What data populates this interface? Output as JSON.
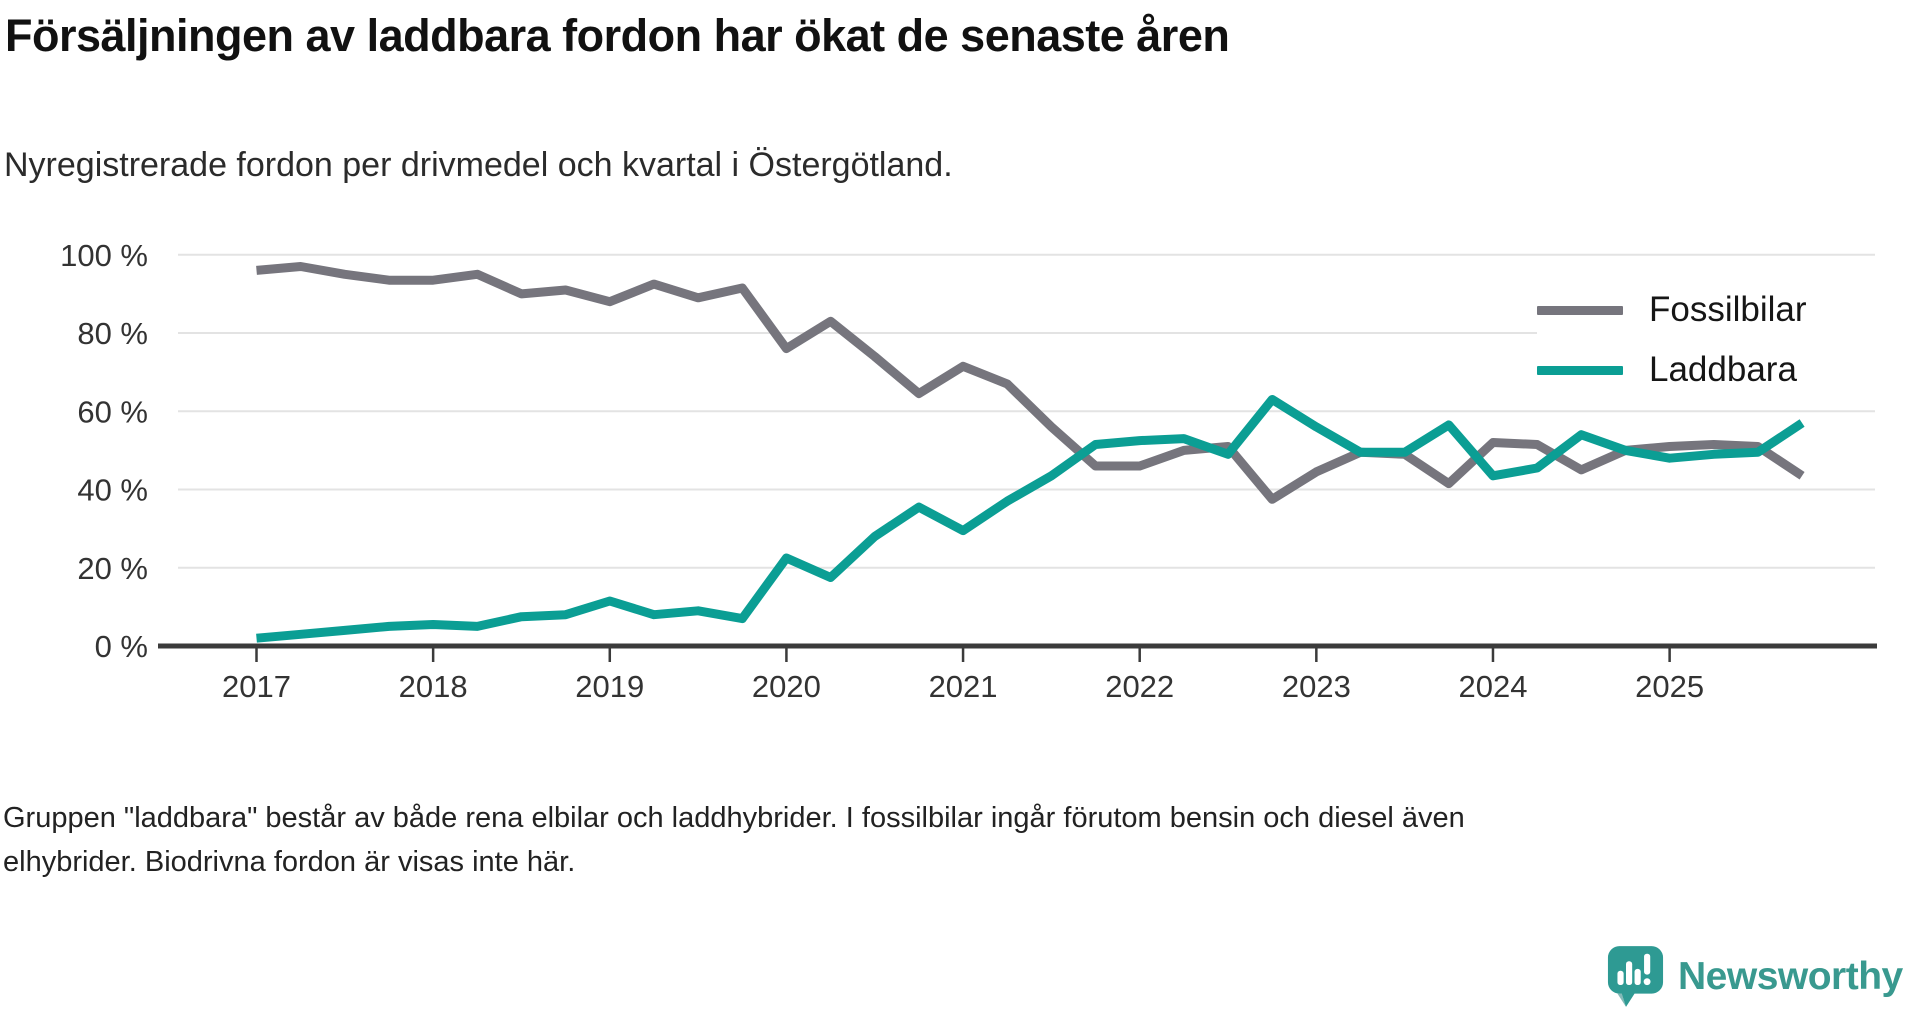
{
  "header": {
    "title": "Försäljningen av laddbara fordon har ökat de senaste åren",
    "subtitle": "Nyregistrerade fordon per drivmedel och kvartal i Östergötland."
  },
  "legend": {
    "items": [
      {
        "label": "Fossilbilar",
        "color": "#76757D"
      },
      {
        "label": "Laddbara",
        "color": "#0B9E94"
      }
    ]
  },
  "footer": {
    "line1": "Gruppen \"laddbara\" består av både rena elbilar och laddhybrider. I fossilbilar ingår förutom bensin och diesel även",
    "line2": "elhybrider. Biodrivna fordon är visas inte här."
  },
  "branding": {
    "name": "Newsworthy",
    "icon_color": "#2E9A93",
    "icon_shade_color": "#1E7F7C",
    "text_color": "#39998F"
  },
  "chart_data": {
    "type": "line",
    "title": "Försäljningen av laddbara fordon har ökat de senaste åren",
    "subtitle": "Nyregistrerade fordon per drivmedel och kvartal i Östergötland.",
    "x": [
      "2017 Q1",
      "2017 Q2",
      "2017 Q3",
      "2017 Q4",
      "2018 Q1",
      "2018 Q2",
      "2018 Q3",
      "2018 Q4",
      "2019 Q1",
      "2019 Q2",
      "2019 Q3",
      "2019 Q4",
      "2020 Q1",
      "2020 Q2",
      "2020 Q3",
      "2020 Q4",
      "2021 Q1",
      "2021 Q2",
      "2021 Q3",
      "2021 Q4",
      "2022 Q1",
      "2022 Q2",
      "2022 Q3",
      "2022 Q4",
      "2023 Q1",
      "2023 Q2",
      "2023 Q3",
      "2023 Q4",
      "2024 Q1",
      "2024 Q2",
      "2024 Q3",
      "2024 Q4",
      "2025 Q1",
      "2025 Q2",
      "2025 Q3",
      "2025 Q4"
    ],
    "series": [
      {
        "name": "Fossilbilar",
        "color": "#76757D",
        "values": [
          96,
          97,
          95,
          93.5,
          93.5,
          95,
          90,
          91,
          88,
          92.5,
          89,
          91.5,
          76,
          83,
          74,
          64.5,
          71.5,
          67,
          56,
          46,
          46,
          50,
          51,
          37.5,
          44.5,
          49.5,
          49,
          41.5,
          52,
          51.5,
          45,
          50,
          51,
          51.5,
          51,
          43.5
        ]
      },
      {
        "name": "Laddbara",
        "color": "#0B9E94",
        "values": [
          2,
          3,
          4,
          5,
          5.5,
          5,
          7.5,
          8,
          11.5,
          8,
          9,
          7,
          22.5,
          17.5,
          28,
          35.5,
          29.5,
          37,
          43.5,
          51.5,
          52.5,
          53,
          49,
          63,
          56,
          49.5,
          49.5,
          56.5,
          43.5,
          45.5,
          54,
          50,
          48,
          49,
          49.5,
          57
        ]
      }
    ],
    "ylim": [
      0,
      100
    ],
    "ytick_values": [
      0,
      20,
      40,
      60,
      80,
      100
    ],
    "ytick_labels": [
      "0 %",
      "20 %",
      "40 %",
      "60 %",
      "80 %",
      "100 %"
    ],
    "xtick_labels": [
      "2017",
      "2018",
      "2019",
      "2020",
      "2021",
      "2022",
      "2023",
      "2024",
      "2025"
    ],
    "grid": "horizontal",
    "legend_position": "top-right",
    "unit": "percent"
  }
}
